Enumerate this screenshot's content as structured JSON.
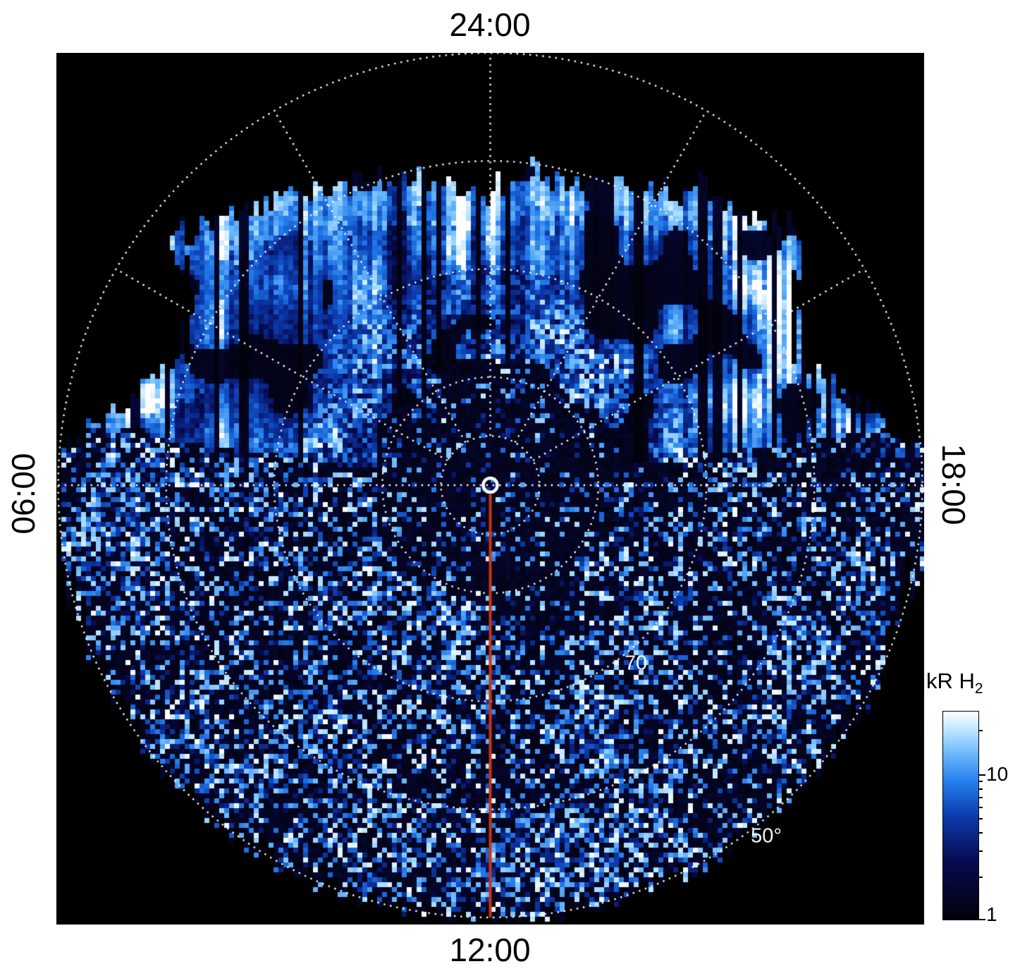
{
  "figure": {
    "background": "#ffffff",
    "plot_background": "#000000"
  },
  "chart_data": {
    "type": "heatmap",
    "projection": "polar",
    "content": "auroral H2 emission intensity map on a polar local-time / latitude grid with random speckle noise and bright streaked emission band on the nightside",
    "local_time_labels": {
      "top": "24:00",
      "bottom": "12:00",
      "left": "06:00",
      "right": "18:00"
    },
    "latitude_ring_labels": [
      {
        "text": "70"
      },
      {
        "text": "50°"
      }
    ],
    "rings_fraction": [
      0.114,
      0.25,
      0.5,
      0.75,
      1.0
    ],
    "spoke_angles_deg": [
      -60,
      -30,
      0,
      30,
      60
    ],
    "grid_color": "#ffffff",
    "noon_meridian_color": "#c93510",
    "center_marker_color": "#ffffff",
    "colormap_stops": [
      {
        "p": 0.0,
        "c": [
          2,
          2,
          10
        ]
      },
      {
        "p": 0.28,
        "c": [
          6,
          10,
          80
        ]
      },
      {
        "p": 0.5,
        "c": [
          12,
          60,
          175
        ]
      },
      {
        "p": 0.66,
        "c": [
          35,
          125,
          235
        ]
      },
      {
        "p": 0.8,
        "c": [
          110,
          185,
          252
        ]
      },
      {
        "p": 0.9,
        "c": [
          180,
          225,
          255
        ]
      },
      {
        "p": 1.0,
        "c": [
          255,
          255,
          255
        ]
      }
    ],
    "colorbar": {
      "title_main": "kR H",
      "title_sub": "2",
      "scale": "log",
      "top_value": 27,
      "bottom_value": 1,
      "major_ticks": [
        {
          "label": "10",
          "value": 10
        },
        {
          "label": "1",
          "value": 1
        }
      ],
      "minor_tick_values": [
        20,
        9,
        8,
        7,
        6,
        5,
        4,
        3,
        2
      ]
    },
    "data_boundary_deg_frac": [
      [
        0,
        0.665
      ],
      [
        30,
        0.78
      ],
      [
        52,
        0.91
      ],
      [
        58,
        0.83
      ],
      [
        68,
        0.77
      ],
      [
        78,
        0.88
      ],
      [
        85,
        0.99
      ],
      [
        90,
        1.0
      ],
      [
        180,
        1.0
      ]
    ],
    "band_inner_fraction": 0.28,
    "seed": 7
  }
}
